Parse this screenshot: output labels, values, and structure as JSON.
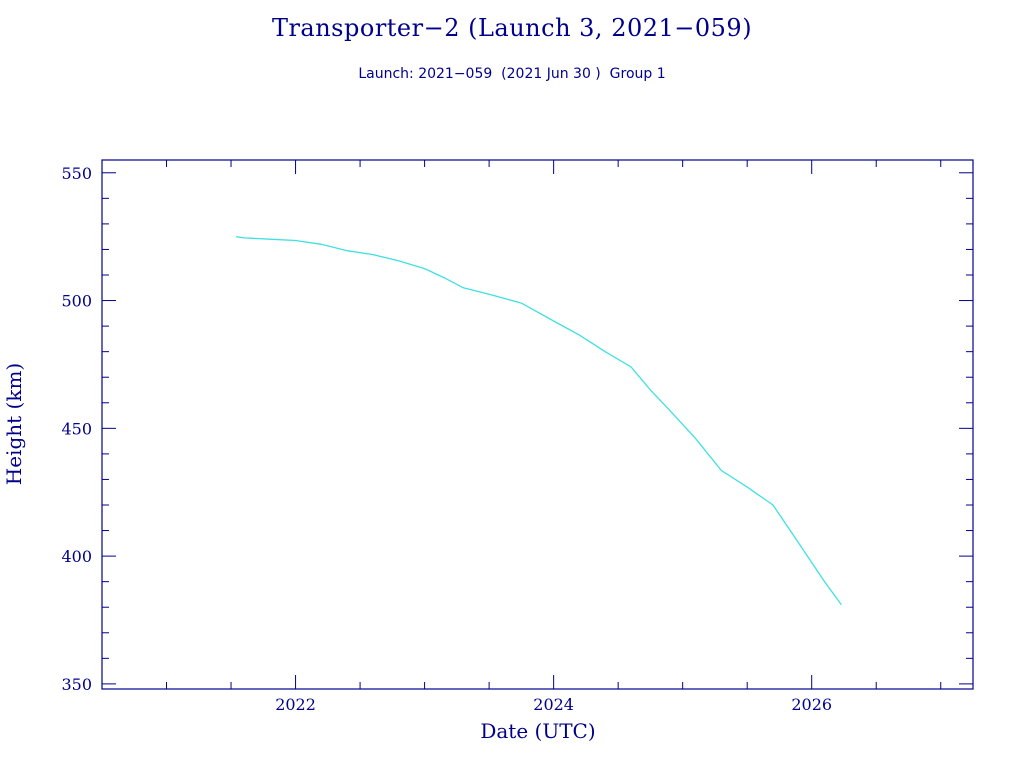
{
  "header": {
    "title": "Transporter−2 (Launch 3, 2021−059)",
    "subtitle": "Launch: 2021−059  (2021 Jun 30 )  Group 1"
  },
  "chart_data": {
    "type": "line",
    "title": "Transporter−2 (Launch 3, 2021−059)",
    "subtitle": "Launch: 2021−059  (2021 Jun 30 )  Group 1",
    "xlabel": "Date (UTC)",
    "ylabel": "Height (km)",
    "xlim": [
      2020.5,
      2027.25
    ],
    "ylim": [
      348,
      555
    ],
    "x_ticks": [
      2022,
      2024,
      2026
    ],
    "y_ticks": [
      350,
      400,
      450,
      500,
      550
    ],
    "grid": false,
    "legend": "none",
    "line_color": "#40e0e0",
    "axis_color": "#00008b",
    "series": [
      {
        "x": [
          2021.54,
          2021.6,
          2021.8,
          2022.0,
          2022.2,
          2022.4,
          2022.6,
          2022.8,
          2023.0,
          2023.15,
          2023.3,
          2023.5,
          2023.75,
          2024.0,
          2024.2,
          2024.4,
          2024.6,
          2024.75,
          2024.9,
          2025.1,
          2025.3,
          2025.5,
          2025.7,
          2025.9,
          2026.1,
          2026.23
        ],
        "y": [
          525,
          524.5,
          524,
          523.5,
          522,
          519.5,
          518,
          515.5,
          512.5,
          509,
          505,
          502.5,
          499,
          492,
          486.5,
          480,
          474,
          465,
          457,
          446,
          433.5,
          427,
          420,
          405,
          390,
          381
        ]
      }
    ]
  }
}
